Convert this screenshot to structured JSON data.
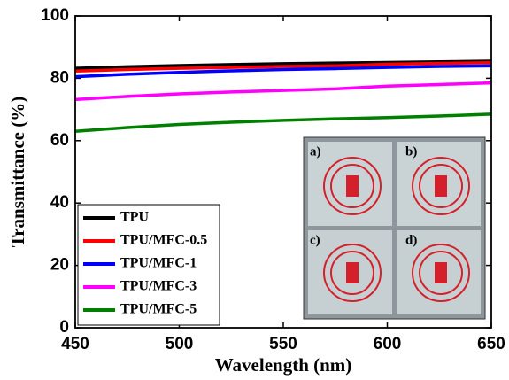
{
  "chart_data": {
    "type": "line",
    "x_label": "Wavelength (nm)",
    "y_label": "Transmittance (%)",
    "x": [
      450,
      475,
      500,
      525,
      550,
      575,
      600,
      625,
      650
    ],
    "series": [
      {
        "name": "TPU",
        "color": "#000000",
        "values": [
          83.2,
          83.7,
          84.1,
          84.4,
          84.7,
          84.9,
          85.1,
          85.3,
          85.5
        ]
      },
      {
        "name": "TPU/MFC-0.5",
        "color": "#ff0000",
        "values": [
          82.3,
          82.8,
          83.2,
          83.5,
          83.8,
          84.0,
          84.5,
          84.8,
          85.0
        ]
      },
      {
        "name": "TPU/MFC-1",
        "color": "#0000ff",
        "values": [
          80.5,
          81.3,
          81.9,
          82.4,
          82.8,
          83.1,
          83.5,
          83.8,
          84.0
        ]
      },
      {
        "name": "TPU/MFC-3",
        "color": "#ff00ff",
        "values": [
          73.2,
          74.2,
          75.0,
          75.6,
          76.1,
          76.6,
          77.5,
          78.0,
          78.5
        ]
      },
      {
        "name": "TPU/MFC-5",
        "color": "#008000",
        "values": [
          63.0,
          64.2,
          65.2,
          65.9,
          66.5,
          67.0,
          67.4,
          67.9,
          68.5
        ]
      }
    ],
    "xlim": [
      450,
      650
    ],
    "xticks": [
      450,
      500,
      550,
      600,
      650
    ],
    "ylim": [
      0,
      100
    ],
    "yticks": [
      0,
      20,
      40,
      60,
      80,
      100
    ],
    "legend": "lower left",
    "inset_labels": [
      "a)",
      "b)",
      "c)",
      "d)"
    ]
  }
}
